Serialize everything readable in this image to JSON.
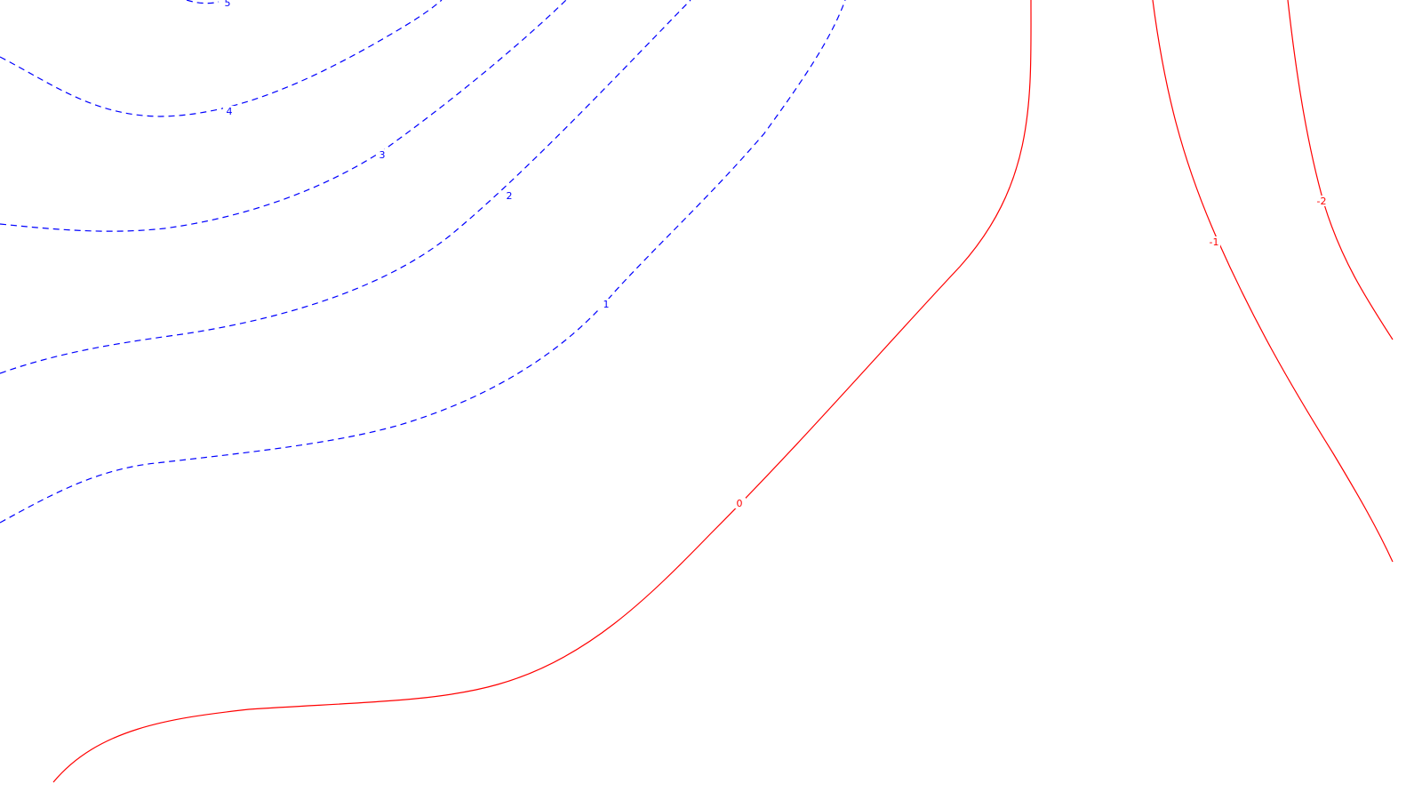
{
  "chart_data": {
    "type": "contour",
    "title": "",
    "xlabel": "",
    "ylabel": "",
    "grid": false,
    "legend": "none",
    "colors": {
      "positive": "#0000ff",
      "zero_and_negative": "#ff0000",
      "background": "#ffffff"
    },
    "levels": [
      {
        "value": 5,
        "label": "5",
        "color": "#0000ff",
        "style": "dashed"
      },
      {
        "value": 4,
        "label": "4",
        "color": "#0000ff",
        "style": "dashed"
      },
      {
        "value": 3,
        "label": "3",
        "color": "#0000ff",
        "style": "dashed"
      },
      {
        "value": 2,
        "label": "2",
        "color": "#0000ff",
        "style": "dashed"
      },
      {
        "value": 1,
        "label": "1",
        "color": "#0000ff",
        "style": "dashed"
      },
      {
        "value": 0,
        "label": "0",
        "color": "#ff0000",
        "style": "solid"
      },
      {
        "value": -1,
        "label": "-1",
        "color": "#ff0000",
        "style": "solid"
      },
      {
        "value": -2,
        "label": "-2",
        "color": "#ff0000",
        "style": "solid"
      }
    ]
  }
}
